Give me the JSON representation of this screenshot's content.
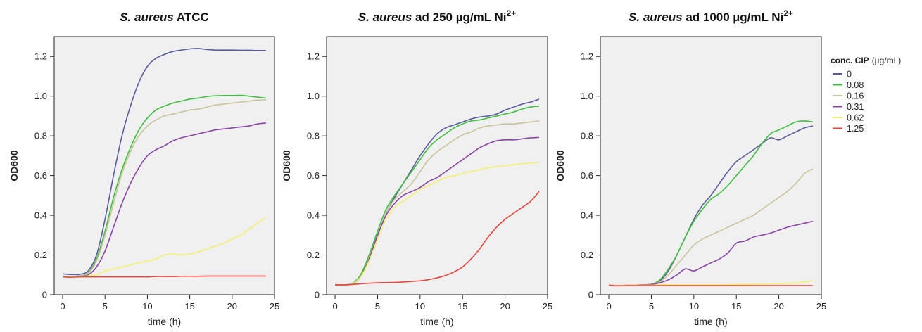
{
  "legend": {
    "title_bold": "conc. CIP",
    "title_unit": "(µg/mL)",
    "entries": [
      {
        "label": "0",
        "color": "#5b5b9e"
      },
      {
        "label": "0.08",
        "color": "#3fbf3f"
      },
      {
        "label": "0.16",
        "color": "#c9c39b"
      },
      {
        "label": "0.31",
        "color": "#8a45a6"
      },
      {
        "label": "0.62",
        "color": "#f3f070"
      },
      {
        "label": "1.25",
        "color": "#e8433b"
      }
    ]
  },
  "chart_data": [
    {
      "type": "line",
      "title_italic": "S. aureus",
      "title_rest": " ATCC",
      "title_sup": "",
      "xlabel": "time (h)",
      "ylabel": "OD600",
      "xlim": [
        -1,
        25
      ],
      "ylim": [
        0,
        1.3
      ],
      "xticks": [
        0,
        5,
        10,
        15,
        20,
        25
      ],
      "yticks": [
        0,
        0.2,
        0.4,
        0.6,
        0.8,
        1.0,
        1.2
      ],
      "ytick_labels": [
        "0",
        "0.2",
        "0.4",
        "0.6",
        "0.8",
        "1.0",
        "1.2"
      ],
      "x": [
        0,
        1,
        2,
        3,
        4,
        5,
        6,
        7,
        8,
        9,
        10,
        11,
        12,
        13,
        14,
        15,
        16,
        17,
        18,
        19,
        20,
        21,
        22,
        23,
        24
      ],
      "series": [
        {
          "name": "0",
          "values": [
            0.105,
            0.102,
            0.103,
            0.12,
            0.2,
            0.38,
            0.6,
            0.8,
            0.95,
            1.07,
            1.15,
            1.19,
            1.21,
            1.225,
            1.232,
            1.238,
            1.24,
            1.235,
            1.232,
            1.232,
            1.232,
            1.231,
            1.231,
            1.23,
            1.23
          ]
        },
        {
          "name": "0.08",
          "values": [
            0.092,
            0.092,
            0.095,
            0.11,
            0.18,
            0.32,
            0.49,
            0.63,
            0.74,
            0.83,
            0.89,
            0.93,
            0.95,
            0.965,
            0.975,
            0.985,
            0.99,
            0.998,
            1.002,
            1.003,
            1.003,
            1.004,
            1.0,
            0.995,
            0.99
          ]
        },
        {
          "name": "0.16",
          "values": [
            0.092,
            0.092,
            0.094,
            0.107,
            0.17,
            0.3,
            0.46,
            0.61,
            0.72,
            0.8,
            0.85,
            0.88,
            0.9,
            0.91,
            0.92,
            0.93,
            0.935,
            0.945,
            0.955,
            0.96,
            0.965,
            0.97,
            0.975,
            0.98,
            0.982
          ]
        },
        {
          "name": "0.31",
          "values": [
            0.09,
            0.09,
            0.092,
            0.1,
            0.14,
            0.22,
            0.34,
            0.46,
            0.56,
            0.64,
            0.7,
            0.73,
            0.75,
            0.775,
            0.79,
            0.8,
            0.81,
            0.82,
            0.83,
            0.835,
            0.84,
            0.845,
            0.85,
            0.86,
            0.865
          ]
        },
        {
          "name": "0.62",
          "values": [
            0.09,
            0.09,
            0.09,
            0.095,
            0.1,
            0.12,
            0.13,
            0.14,
            0.15,
            0.16,
            0.17,
            0.18,
            0.2,
            0.205,
            0.2,
            0.205,
            0.215,
            0.23,
            0.245,
            0.26,
            0.28,
            0.3,
            0.33,
            0.36,
            0.39
          ]
        },
        {
          "name": "1.25",
          "values": [
            0.09,
            0.088,
            0.09,
            0.09,
            0.09,
            0.09,
            0.09,
            0.09,
            0.09,
            0.09,
            0.09,
            0.092,
            0.092,
            0.092,
            0.093,
            0.093,
            0.093,
            0.094,
            0.094,
            0.094,
            0.094,
            0.094,
            0.094,
            0.094,
            0.094
          ]
        }
      ]
    },
    {
      "type": "line",
      "title_italic": "S. aureus",
      "title_rest": " ad 250 µg/mL Ni",
      "title_sup": "2+",
      "xlabel": "time (h)",
      "ylabel": "OD600",
      "xlim": [
        -1,
        25
      ],
      "ylim": [
        0,
        1.3
      ],
      "xticks": [
        0,
        5,
        10,
        15,
        20,
        25
      ],
      "yticks": [
        0,
        0.2,
        0.4,
        0.6,
        0.8,
        1.0,
        1.2
      ],
      "ytick_labels": [
        "0",
        "0.2",
        "0.4",
        "0.6",
        "0.8",
        "1.0",
        "1.2"
      ],
      "x": [
        0,
        1,
        2,
        3,
        4,
        5,
        6,
        7,
        8,
        9,
        10,
        11,
        12,
        13,
        14,
        15,
        16,
        17,
        18,
        19,
        20,
        21,
        22,
        23,
        24
      ],
      "series": [
        {
          "name": "0",
          "values": [
            0.05,
            0.05,
            0.055,
            0.09,
            0.18,
            0.3,
            0.41,
            0.49,
            0.56,
            0.63,
            0.7,
            0.76,
            0.81,
            0.84,
            0.855,
            0.87,
            0.885,
            0.895,
            0.9,
            0.91,
            0.93,
            0.945,
            0.96,
            0.97,
            0.985
          ]
        },
        {
          "name": "0.08",
          "values": [
            0.05,
            0.05,
            0.056,
            0.1,
            0.2,
            0.32,
            0.43,
            0.5,
            0.56,
            0.62,
            0.68,
            0.74,
            0.78,
            0.81,
            0.84,
            0.86,
            0.875,
            0.88,
            0.89,
            0.9,
            0.91,
            0.92,
            0.935,
            0.945,
            0.95
          ]
        },
        {
          "name": "0.16",
          "values": [
            0.05,
            0.05,
            0.055,
            0.09,
            0.18,
            0.3,
            0.41,
            0.48,
            0.52,
            0.56,
            0.62,
            0.68,
            0.72,
            0.75,
            0.78,
            0.805,
            0.82,
            0.84,
            0.85,
            0.855,
            0.86,
            0.86,
            0.865,
            0.87,
            0.875
          ]
        },
        {
          "name": "0.31",
          "values": [
            0.05,
            0.05,
            0.055,
            0.09,
            0.18,
            0.3,
            0.4,
            0.46,
            0.5,
            0.52,
            0.54,
            0.57,
            0.59,
            0.62,
            0.65,
            0.68,
            0.71,
            0.74,
            0.76,
            0.775,
            0.78,
            0.78,
            0.785,
            0.79,
            0.792
          ]
        },
        {
          "name": "0.62",
          "values": [
            0.05,
            0.05,
            0.055,
            0.09,
            0.17,
            0.28,
            0.38,
            0.44,
            0.47,
            0.5,
            0.53,
            0.55,
            0.57,
            0.59,
            0.6,
            0.61,
            0.62,
            0.63,
            0.64,
            0.645,
            0.65,
            0.655,
            0.66,
            0.663,
            0.665
          ]
        },
        {
          "name": "1.25",
          "values": [
            0.05,
            0.05,
            0.052,
            0.055,
            0.058,
            0.06,
            0.061,
            0.062,
            0.064,
            0.067,
            0.07,
            0.076,
            0.085,
            0.097,
            0.115,
            0.14,
            0.18,
            0.23,
            0.29,
            0.34,
            0.38,
            0.41,
            0.44,
            0.47,
            0.52
          ]
        }
      ]
    },
    {
      "type": "line",
      "title_italic": "S. aureus",
      "title_rest": " ad 1000 µg/mL Ni",
      "title_sup": "2+",
      "xlabel": "time (h)",
      "ylabel": "OD600",
      "xlim": [
        -1,
        25
      ],
      "ylim": [
        0,
        1.3
      ],
      "xticks": [
        0,
        5,
        10,
        15,
        20,
        25
      ],
      "yticks": [
        0,
        0.2,
        0.4,
        0.6,
        0.8,
        1.0,
        1.2
      ],
      "ytick_labels": [
        "0",
        "0.2",
        "0.4",
        "0.6",
        "0.8",
        "1.0",
        "1.2"
      ],
      "x": [
        0,
        1,
        2,
        3,
        4,
        5,
        6,
        7,
        8,
        9,
        10,
        11,
        12,
        13,
        14,
        15,
        16,
        17,
        18,
        19,
        20,
        21,
        22,
        23,
        24
      ],
      "series": [
        {
          "name": "0",
          "values": [
            0.048,
            0.046,
            0.047,
            0.048,
            0.05,
            0.052,
            0.07,
            0.12,
            0.2,
            0.29,
            0.38,
            0.45,
            0.5,
            0.56,
            0.62,
            0.67,
            0.7,
            0.73,
            0.76,
            0.79,
            0.78,
            0.8,
            0.82,
            0.84,
            0.85
          ]
        },
        {
          "name": "0.08",
          "values": [
            0.048,
            0.046,
            0.047,
            0.048,
            0.05,
            0.052,
            0.075,
            0.13,
            0.2,
            0.29,
            0.37,
            0.43,
            0.48,
            0.51,
            0.55,
            0.6,
            0.65,
            0.7,
            0.76,
            0.81,
            0.83,
            0.85,
            0.87,
            0.875,
            0.87
          ]
        },
        {
          "name": "0.16",
          "values": [
            0.048,
            0.046,
            0.047,
            0.048,
            0.05,
            0.052,
            0.065,
            0.1,
            0.15,
            0.2,
            0.25,
            0.28,
            0.3,
            0.32,
            0.34,
            0.36,
            0.38,
            0.4,
            0.43,
            0.46,
            0.49,
            0.52,
            0.56,
            0.61,
            0.635
          ]
        },
        {
          "name": "0.31",
          "values": [
            0.048,
            0.046,
            0.047,
            0.048,
            0.05,
            0.052,
            0.06,
            0.075,
            0.1,
            0.13,
            0.12,
            0.14,
            0.16,
            0.18,
            0.21,
            0.26,
            0.27,
            0.29,
            0.3,
            0.31,
            0.325,
            0.34,
            0.35,
            0.36,
            0.37
          ]
        },
        {
          "name": "0.62",
          "values": [
            0.048,
            0.046,
            0.047,
            0.048,
            0.048,
            0.048,
            0.05,
            0.05,
            0.05,
            0.05,
            0.05,
            0.05,
            0.05,
            0.05,
            0.05,
            0.052,
            0.052,
            0.053,
            0.054,
            0.055,
            0.056,
            0.058,
            0.06,
            0.065,
            0.07
          ]
        },
        {
          "name": "1.25",
          "values": [
            0.048,
            0.045,
            0.046,
            0.046,
            0.046,
            0.046,
            0.046,
            0.046,
            0.046,
            0.046,
            0.046,
            0.046,
            0.046,
            0.046,
            0.046,
            0.046,
            0.046,
            0.046,
            0.046,
            0.046,
            0.046,
            0.046,
            0.046,
            0.046,
            0.046
          ]
        }
      ]
    }
  ]
}
